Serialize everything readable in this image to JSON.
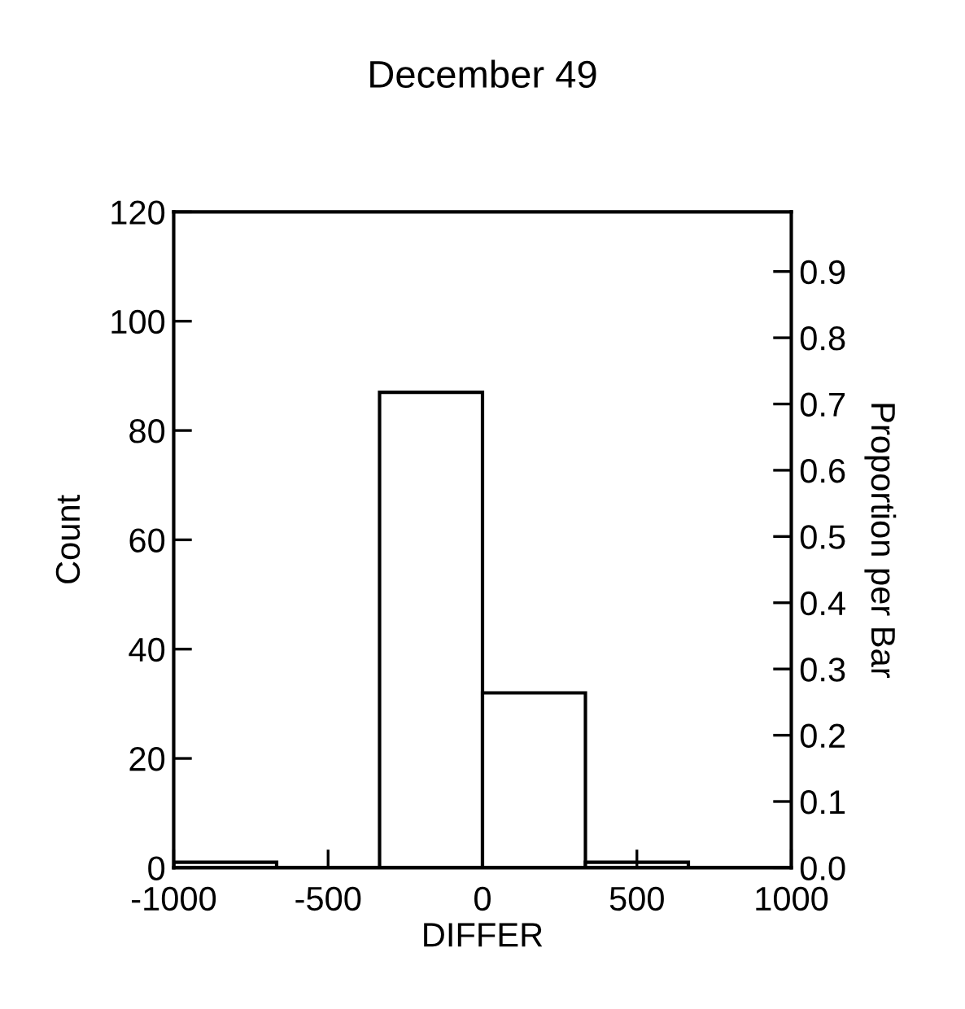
{
  "chart_data": {
    "type": "histogram",
    "title": "December 49",
    "xlabel": "DIFFER",
    "ylabel": "Count",
    "y2label": "Proportion per Bar",
    "bins": [
      -1000,
      -666.67,
      -333.33,
      0,
      333.33,
      666.67,
      1000
    ],
    "values": [
      1,
      0,
      87,
      32,
      1,
      0
    ],
    "color": "#ffffff",
    "xlim": [
      -1000,
      1000
    ],
    "xticks": [
      -1000,
      -500,
      0,
      500,
      1000
    ],
    "ylim": [
      0,
      120
    ],
    "yticks": [
      0,
      20,
      40,
      60,
      80,
      100,
      120
    ],
    "y2lim": [
      0,
      0.99
    ],
    "y2ticks": [
      {
        "value": 0,
        "label": "0.0"
      },
      0.1,
      0.2,
      0.3,
      0.4,
      0.5,
      0.6,
      0.7,
      0.8,
      0.9
    ],
    "grid": false
  }
}
